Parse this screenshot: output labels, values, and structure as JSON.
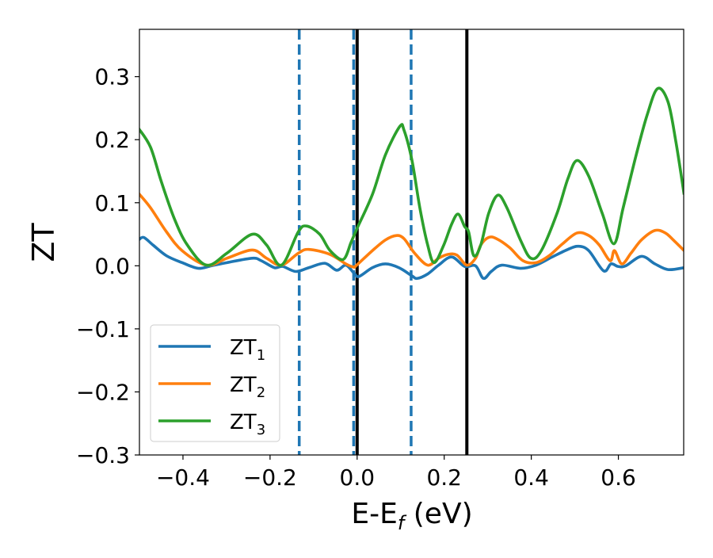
{
  "chart_data": {
    "type": "line",
    "title": "",
    "xlabel": "E-E",
    "xlabel_sub": "f",
    "xlabel_unit": " (eV)",
    "ylabel": "ZT",
    "xlim": [
      -0.5,
      0.75
    ],
    "ylim": [
      -0.3,
      0.375
    ],
    "xticks": [
      -0.4,
      -0.2,
      0.0,
      0.2,
      0.4,
      0.6
    ],
    "xtick_labels": [
      "−0.4",
      "−0.2",
      "0.0",
      "0.2",
      "0.4",
      "0.6"
    ],
    "yticks": [
      -0.3,
      -0.2,
      -0.1,
      0.0,
      0.1,
      0.2,
      0.3
    ],
    "ytick_labels": [
      "−0.3",
      "−0.2",
      "−0.1",
      "0.0",
      "0.1",
      "0.2",
      "0.3"
    ],
    "grid": false,
    "legend_placement": "lower-left",
    "series": [
      {
        "name": "ZT",
        "sub": "1",
        "color": "#1f77b4",
        "x": [
          -0.502,
          -0.49,
          -0.469,
          -0.438,
          -0.402,
          -0.365,
          -0.335,
          -0.299,
          -0.241,
          -0.22,
          -0.19,
          -0.171,
          -0.141,
          -0.111,
          -0.074,
          -0.047,
          -0.026,
          -0.008,
          0.004,
          0.035,
          0.065,
          0.096,
          0.126,
          0.138,
          0.162,
          0.187,
          0.217,
          0.247,
          0.272,
          0.29,
          0.308,
          0.332,
          0.375,
          0.411,
          0.448,
          0.484,
          0.508,
          0.532,
          0.566,
          0.583,
          0.599,
          0.617,
          0.653,
          0.684,
          0.714,
          0.751
        ],
        "y": [
          0.041,
          0.045,
          0.033,
          0.016,
          0.005,
          -0.004,
          0.0,
          0.005,
          0.012,
          0.008,
          -0.003,
          -0.001,
          -0.009,
          -0.003,
          0.004,
          -0.007,
          0.001,
          -0.011,
          -0.017,
          -0.003,
          0.003,
          -0.003,
          -0.016,
          -0.02,
          -0.013,
          0.001,
          0.014,
          -0.001,
          0.0,
          -0.02,
          -0.009,
          0.001,
          -0.004,
          0.001,
          0.014,
          0.026,
          0.031,
          0.024,
          -0.008,
          0.003,
          -0.001,
          0.0,
          0.015,
          0.003,
          -0.006,
          -0.003
        ]
      },
      {
        "name": "ZT",
        "sub": "2",
        "color": "#ff7f0e",
        "x": [
          -0.502,
          -0.4745,
          -0.438,
          -0.402,
          -0.346,
          -0.299,
          -0.241,
          -0.208,
          -0.174,
          -0.135,
          -0.111,
          -0.062,
          -0.026,
          -0.008,
          -0.001,
          0.035,
          0.065,
          0.09,
          0.1077,
          0.132,
          0.162,
          0.187,
          0.208,
          0.229,
          0.252,
          0.272,
          0.284,
          0.302,
          0.32,
          0.35,
          0.381,
          0.411,
          0.441,
          0.472,
          0.505,
          0.532,
          0.556,
          0.581,
          0.591,
          0.608,
          0.629,
          0.653,
          0.684,
          0.708,
          0.726,
          0.751
        ],
        "y": [
          0.115,
          0.092,
          0.054,
          0.024,
          0.001,
          0.012,
          0.025,
          0.012,
          0.001,
          0.02,
          0.026,
          0.018,
          0.003,
          -0.002,
          0.001,
          0.024,
          0.041,
          0.048,
          0.043,
          0.02,
          0.001,
          0.012,
          0.018,
          0.017,
          0.001,
          0.012,
          0.033,
          0.045,
          0.043,
          0.029,
          0.008,
          0.005,
          0.016,
          0.035,
          0.052,
          0.048,
          0.033,
          0.008,
          0.024,
          0.003,
          0.02,
          0.041,
          0.056,
          0.052,
          0.041,
          0.024
        ]
      },
      {
        "name": "ZT",
        "sub": "3",
        "color": "#2ca02c",
        "x": [
          -0.502,
          -0.4745,
          -0.45,
          -0.42,
          -0.39,
          -0.346,
          -0.299,
          -0.241,
          -0.208,
          -0.174,
          -0.135,
          -0.116,
          -0.086,
          -0.062,
          -0.032,
          -0.014,
          -0.001,
          0.035,
          0.065,
          0.098,
          0.1077,
          0.126,
          0.144,
          0.162,
          0.177,
          0.199,
          0.217,
          0.232,
          0.247,
          0.256,
          0.268,
          0.284,
          0.302,
          0.323,
          0.344,
          0.375,
          0.399,
          0.423,
          0.459,
          0.484,
          0.505,
          0.532,
          0.563,
          0.59,
          0.611,
          0.641,
          0.666,
          0.69,
          0.714,
          0.732,
          0.751
        ],
        "y": [
          0.218,
          0.188,
          0.134,
          0.075,
          0.033,
          0.001,
          0.02,
          0.05,
          0.033,
          0.001,
          0.054,
          0.063,
          0.05,
          0.024,
          0.01,
          0.037,
          0.058,
          0.113,
          0.176,
          0.221,
          0.215,
          0.167,
          0.092,
          0.033,
          0.005,
          0.033,
          0.066,
          0.082,
          0.062,
          0.054,
          0.016,
          0.033,
          0.083,
          0.112,
          0.092,
          0.041,
          0.012,
          0.024,
          0.083,
          0.138,
          0.167,
          0.142,
          0.083,
          0.035,
          0.092,
          0.176,
          0.239,
          0.281,
          0.26,
          0.197,
          0.113
        ]
      }
    ],
    "vlines": [
      {
        "x": -0.133,
        "style": "dashed",
        "color": "#1f77b4"
      },
      {
        "x": -0.008,
        "style": "dashed",
        "color": "#1f77b4"
      },
      {
        "x": 0.124,
        "style": "dashed",
        "color": "#1f77b4"
      },
      {
        "x": 0.0,
        "style": "solid",
        "color": "#000000"
      },
      {
        "x": 0.252,
        "style": "solid",
        "color": "#000000"
      }
    ]
  }
}
